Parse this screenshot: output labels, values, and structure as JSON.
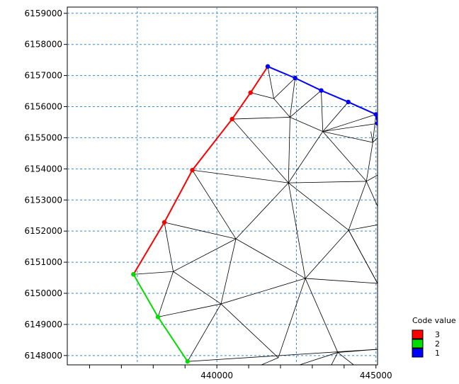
{
  "chart_data": {
    "type": "mesh",
    "title": "",
    "xlabel": "",
    "ylabel": "",
    "xlim": [
      435300,
      445050
    ],
    "ylim": [
      6147700,
      6159200
    ],
    "x_ticks": [
      440000,
      445000
    ],
    "x_tick_labels": [
      "440000",
      "445000"
    ],
    "y_ticks": [
      6148000,
      6149000,
      6150000,
      6151000,
      6152000,
      6153000,
      6154000,
      6155000,
      6156000,
      6157000,
      6158000,
      6159000
    ],
    "y_tick_labels": [
      "6148000",
      "6149000",
      "6150000",
      "6151000",
      "6152000",
      "6153000",
      "6154000",
      "6155000",
      "6156000",
      "6157000",
      "6158000",
      "6159000"
    ],
    "x_grid_lines": [
      437500,
      440000,
      442500,
      445000
    ],
    "grid": true,
    "grid_style": "dashed",
    "grid_color": "#3a8ad8",
    "mesh_color": "#000000",
    "legend": {
      "title": "Code value",
      "position": "bottom-right",
      "items": [
        {
          "label": "3",
          "color": "#ff0000"
        },
        {
          "label": "2",
          "color": "#00dd00"
        },
        {
          "label": "1",
          "color": "#0000ff"
        }
      ]
    },
    "nodes": [
      {
        "x": 437380,
        "y": 6150610
      },
      {
        "x": 438350,
        "y": 6152280
      },
      {
        "x": 439230,
        "y": 6153960
      },
      {
        "x": 440480,
        "y": 6155600
      },
      {
        "x": 441060,
        "y": 6156450
      },
      {
        "x": 441600,
        "y": 6157290
      },
      {
        "x": 442460,
        "y": 6156920
      },
      {
        "x": 443280,
        "y": 6156520
      },
      {
        "x": 444130,
        "y": 6156150
      },
      {
        "x": 445000,
        "y": 6155750
      },
      {
        "x": 438150,
        "y": 6149240
      },
      {
        "x": 439080,
        "y": 6147810
      },
      {
        "x": 445050,
        "y": 6155460
      },
      {
        "x": 442300,
        "y": 6155660
      },
      {
        "x": 441790,
        "y": 6156260
      },
      {
        "x": 443330,
        "y": 6155200
      },
      {
        "x": 444840,
        "y": 6155200
      },
      {
        "x": 444900,
        "y": 6154850
      },
      {
        "x": 445050,
        "y": 6155000
      },
      {
        "x": 442250,
        "y": 6153550
      },
      {
        "x": 444700,
        "y": 6153600
      },
      {
        "x": 445050,
        "y": 6153800
      },
      {
        "x": 445050,
        "y": 6152800
      },
      {
        "x": 444140,
        "y": 6152030
      },
      {
        "x": 445050,
        "y": 6152200
      },
      {
        "x": 440600,
        "y": 6151750
      },
      {
        "x": 438630,
        "y": 6150700
      },
      {
        "x": 442780,
        "y": 6150480
      },
      {
        "x": 445050,
        "y": 6150320
      },
      {
        "x": 440130,
        "y": 6149660
      },
      {
        "x": 443800,
        "y": 6148100
      },
      {
        "x": 441930,
        "y": 6147930
      },
      {
        "x": 445050,
        "y": 6148200
      },
      {
        "x": 441400,
        "y": 6147700
      },
      {
        "x": 442600,
        "y": 6147700
      },
      {
        "x": 443600,
        "y": 6147700
      },
      {
        "x": 444300,
        "y": 6147700
      },
      {
        "x": 445050,
        "y": 6147850
      }
    ],
    "mesh_edges": [
      [
        0,
        26
      ],
      [
        1,
        26
      ],
      [
        1,
        25
      ],
      [
        2,
        25
      ],
      [
        2,
        19
      ],
      [
        3,
        19
      ],
      [
        3,
        13
      ],
      [
        4,
        14
      ],
      [
        5,
        14
      ],
      [
        6,
        14
      ],
      [
        6,
        13
      ],
      [
        13,
        14
      ],
      [
        7,
        13
      ],
      [
        7,
        15
      ],
      [
        8,
        15
      ],
      [
        9,
        15
      ],
      [
        9,
        17
      ],
      [
        15,
        17
      ],
      [
        15,
        12
      ],
      [
        16,
        17
      ],
      [
        13,
        19
      ],
      [
        13,
        15
      ],
      [
        15,
        19
      ],
      [
        15,
        20
      ],
      [
        19,
        20
      ],
      [
        17,
        20
      ],
      [
        17,
        18
      ],
      [
        20,
        21
      ],
      [
        20,
        22
      ],
      [
        19,
        23
      ],
      [
        20,
        23
      ],
      [
        23,
        24
      ],
      [
        19,
        25
      ],
      [
        19,
        27
      ],
      [
        25,
        27
      ],
      [
        23,
        27
      ],
      [
        23,
        28
      ],
      [
        27,
        28
      ],
      [
        26,
        25
      ],
      [
        26,
        29
      ],
      [
        25,
        29
      ],
      [
        26,
        10
      ],
      [
        10,
        29
      ],
      [
        29,
        11
      ],
      [
        29,
        27
      ],
      [
        27,
        30
      ],
      [
        27,
        31
      ],
      [
        29,
        31
      ],
      [
        31,
        33
      ],
      [
        11,
        32
      ],
      [
        30,
        32
      ],
      [
        30,
        34
      ],
      [
        30,
        35
      ],
      [
        30,
        36
      ],
      [
        28,
        37
      ],
      [
        23,
        28
      ]
    ],
    "boundary_lines": [
      {
        "code": "3",
        "color": "#ff0000",
        "nodes": [
          0,
          1,
          2,
          3,
          4,
          5
        ]
      },
      {
        "code": "2",
        "color": "#00dd00",
        "nodes": [
          0,
          10,
          11
        ]
      },
      {
        "code": "1",
        "color": "#0000ff",
        "nodes": [
          5,
          6,
          7,
          8,
          9,
          12
        ]
      }
    ]
  }
}
